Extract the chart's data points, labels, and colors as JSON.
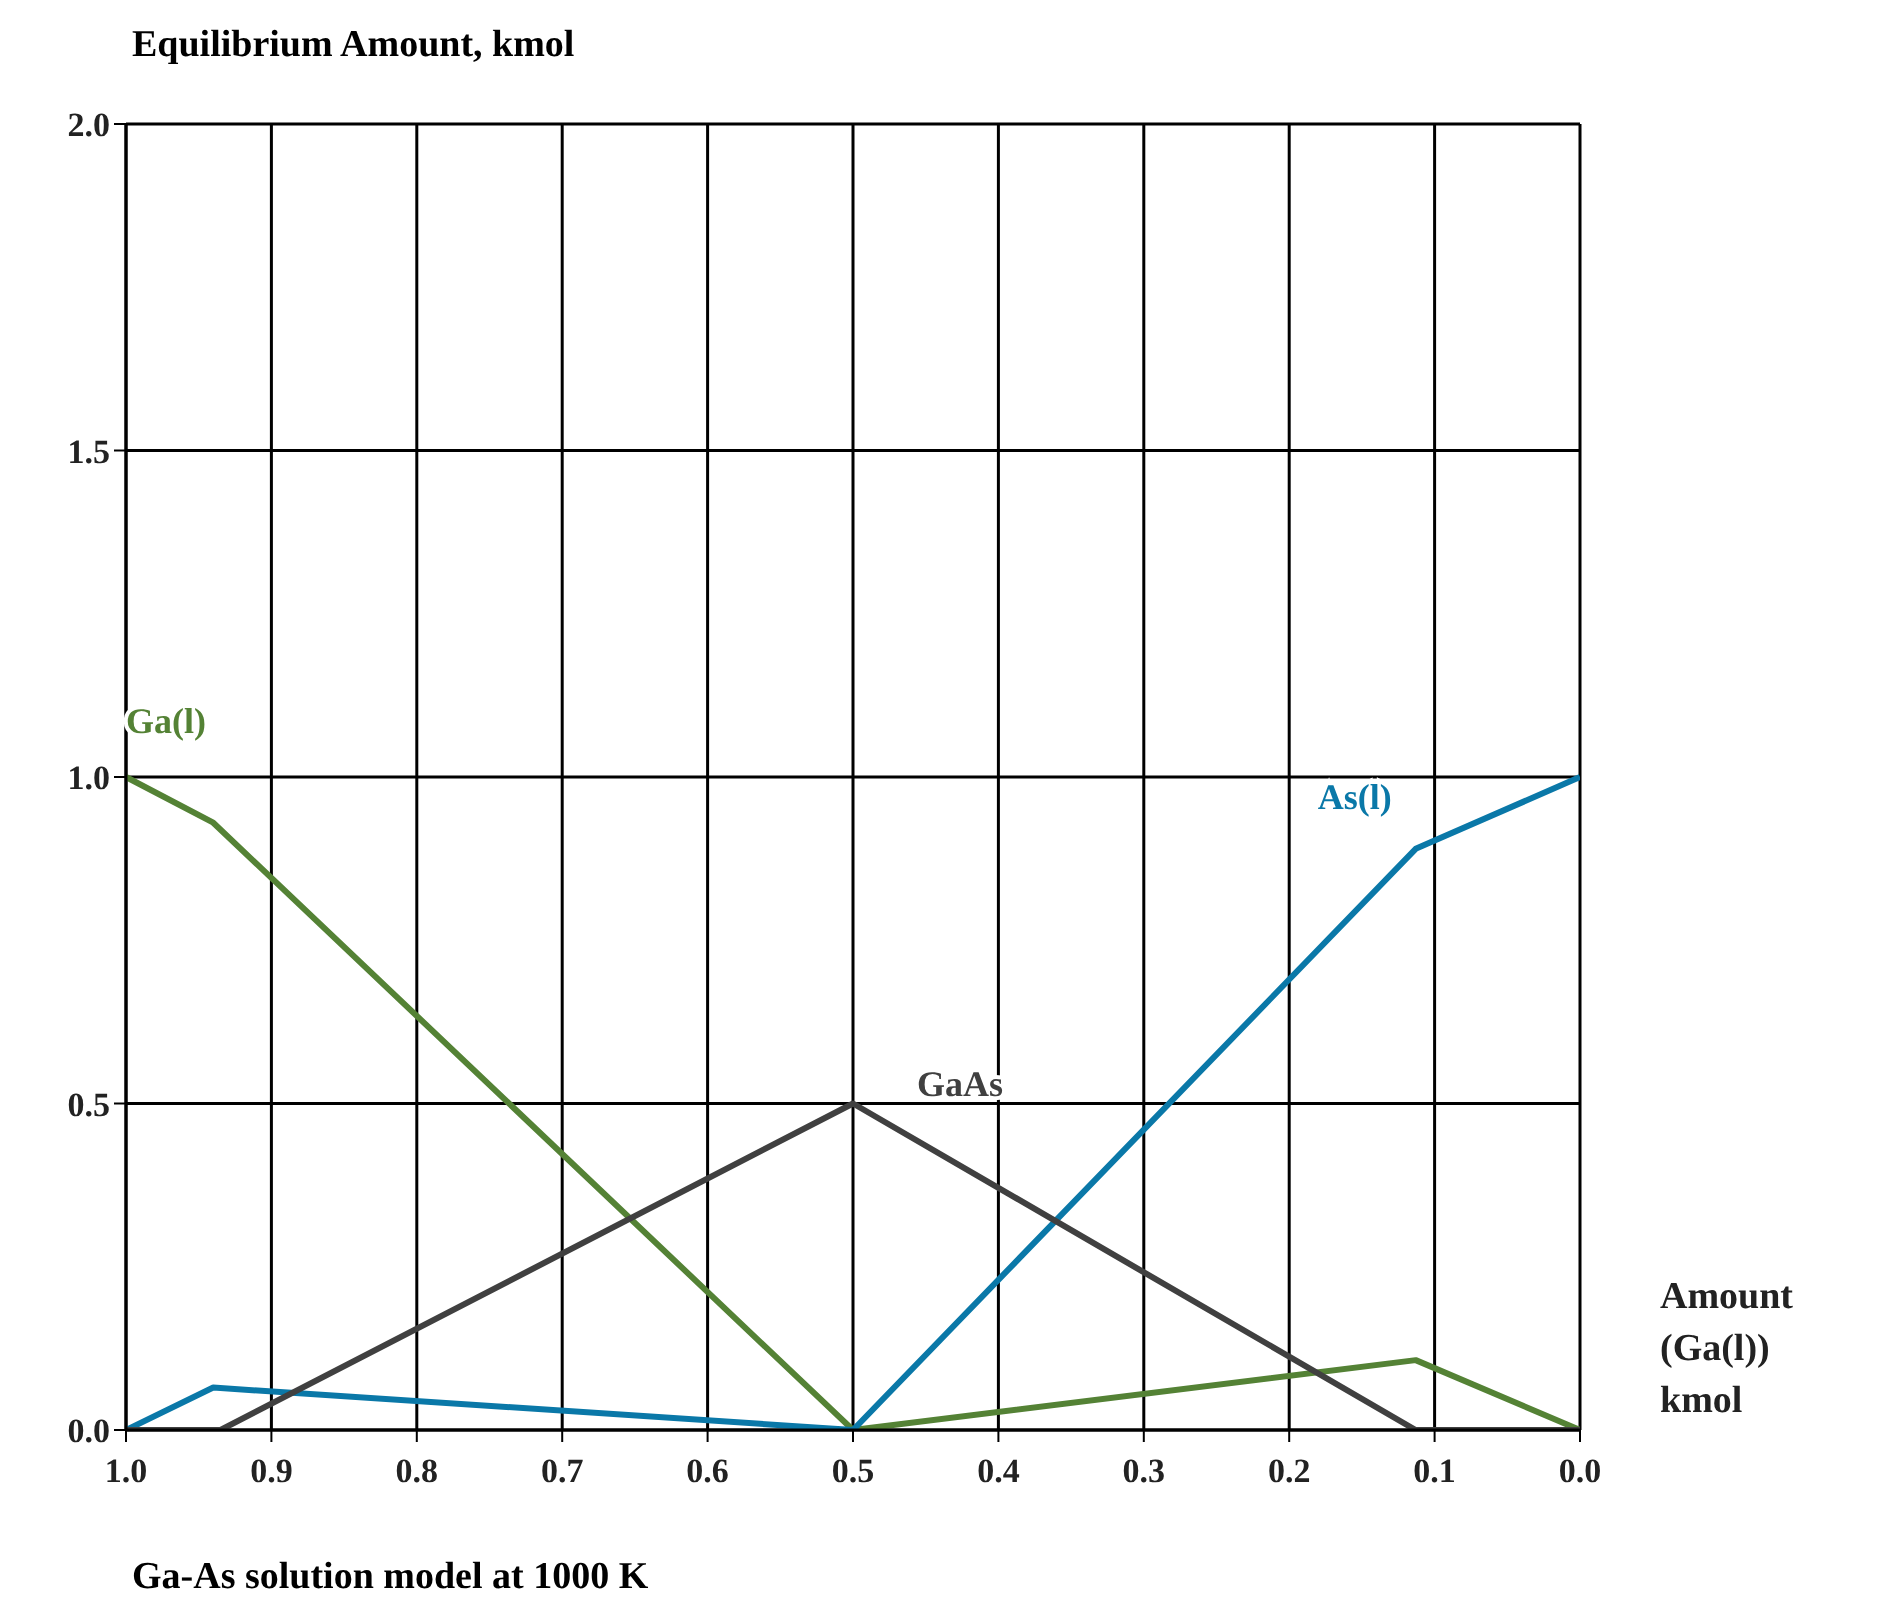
{
  "chart_data": {
    "type": "line",
    "ylabel": "Equilibrium Amount, kmol",
    "xlabel": "Amount (Ga(l)) kmol",
    "annotations": [
      "Ga-As solution model at 1000 K"
    ],
    "xlim": [
      1.0,
      0.0
    ],
    "xticks": [
      {
        "value": 1,
        "label": "1.0"
      },
      {
        "value": 0.9,
        "label": "0.9"
      },
      {
        "value": 0.8,
        "label": "0.8"
      },
      {
        "value": 0.7,
        "label": "0.7"
      },
      {
        "value": 0.6,
        "label": "0.6"
      },
      {
        "value": 0.5,
        "label": "0.5"
      },
      {
        "value": 0.4,
        "label": "0.4"
      },
      {
        "value": 0.3,
        "label": "0.3"
      },
      {
        "value": 0.2,
        "label": "0.2"
      },
      {
        "value": 0.1,
        "label": "0.1"
      },
      {
        "value": 0,
        "label": "0.0"
      }
    ],
    "ylim": [
      0,
      2
    ],
    "yticks": [
      {
        "value": 0,
        "label": "0.0"
      },
      {
        "value": 0.5,
        "label": "0.5"
      },
      {
        "value": 1,
        "label": "1.0"
      },
      {
        "value": 1.5,
        "label": "1.5"
      },
      {
        "value": 2,
        "label": "2.0"
      }
    ],
    "grid": true,
    "legend": false,
    "marker": "none",
    "line_style": "solid",
    "series": [
      {
        "name": "Ga(l)",
        "color": "#548235",
        "x": [
          1.0,
          0.94,
          0.5,
          0.113,
          0.0
        ],
        "values": [
          1.0,
          0.93,
          0.0,
          0.107,
          0.0
        ]
      },
      {
        "name": "As(l)",
        "color": "#0a78a8",
        "x": [
          1.0,
          0.94,
          0.5,
          0.113,
          0.0
        ],
        "values": [
          0.0,
          0.065,
          0.0,
          0.89,
          1.0
        ]
      },
      {
        "name": "GaAs",
        "color": "#404040",
        "x": [
          1.0,
          0.935,
          0.5,
          0.113,
          0.0
        ],
        "values": [
          0.0,
          0.0,
          0.5,
          0.0,
          0.0
        ]
      }
    ]
  }
}
